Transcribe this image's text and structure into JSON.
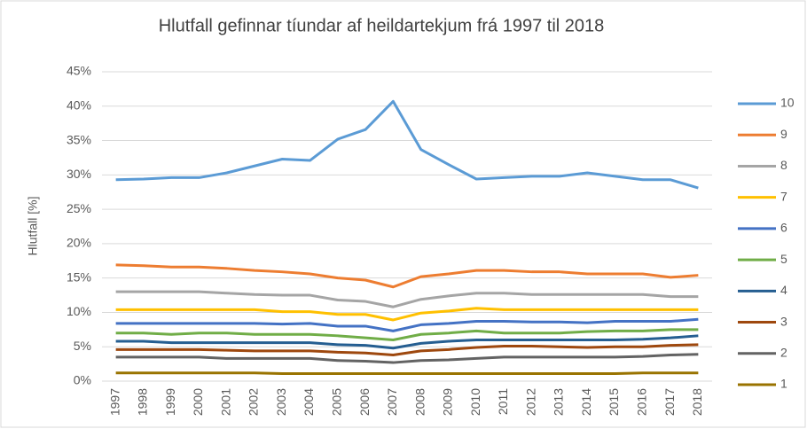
{
  "chart_data": {
    "type": "line",
    "title": "Hlutfall gefinnar tíundar af heildartekjum frá 1997 til 2018",
    "y_label": "Hlutfall [%]",
    "categories": [
      "1997",
      "1998",
      "1999",
      "2000",
      "2001",
      "2002",
      "2003",
      "2004",
      "2005",
      "2006",
      "2007",
      "2008",
      "2009",
      "2010",
      "2011",
      "2012",
      "2013",
      "2014",
      "2015",
      "2016",
      "2017",
      "2018"
    ],
    "ylim": [
      0,
      45
    ],
    "yticks": [
      {
        "value": 0,
        "label": "0%"
      },
      {
        "value": 5,
        "label": "5%"
      },
      {
        "value": 10,
        "label": "10%"
      },
      {
        "value": 15,
        "label": "15%"
      },
      {
        "value": 20,
        "label": "20%"
      },
      {
        "value": 25,
        "label": "25%"
      },
      {
        "value": 30,
        "label": "30%"
      },
      {
        "value": 35,
        "label": "35%"
      },
      {
        "value": 40,
        "label": "40%"
      },
      {
        "value": 45,
        "label": "45%"
      }
    ],
    "grid": true,
    "legend": "right",
    "series": [
      {
        "name": "10",
        "color": "#5b9bd5",
        "values": [
          29.3,
          29.4,
          29.6,
          29.6,
          30.3,
          31.3,
          32.3,
          32.1,
          35.2,
          36.6,
          40.7,
          33.7,
          31.5,
          29.4,
          29.6,
          29.8,
          29.8,
          30.3,
          29.8,
          29.3,
          29.3,
          28.1
        ]
      },
      {
        "name": "9",
        "color": "#ed7d31",
        "values": [
          16.9,
          16.8,
          16.6,
          16.6,
          16.4,
          16.1,
          15.9,
          15.6,
          15.0,
          14.7,
          13.7,
          15.2,
          15.6,
          16.1,
          16.1,
          15.9,
          15.9,
          15.6,
          15.6,
          15.6,
          15.1,
          15.4
        ]
      },
      {
        "name": "8",
        "color": "#a5a5a5",
        "values": [
          13.0,
          13.0,
          13.0,
          13.0,
          12.8,
          12.6,
          12.5,
          12.5,
          11.8,
          11.6,
          10.8,
          11.9,
          12.4,
          12.8,
          12.8,
          12.6,
          12.6,
          12.6,
          12.6,
          12.6,
          12.3,
          12.3
        ]
      },
      {
        "name": "7",
        "color": "#ffc000",
        "values": [
          10.4,
          10.4,
          10.4,
          10.4,
          10.4,
          10.4,
          10.1,
          10.1,
          9.7,
          9.7,
          8.9,
          9.9,
          10.2,
          10.6,
          10.4,
          10.4,
          10.4,
          10.4,
          10.4,
          10.4,
          10.4,
          10.4
        ]
      },
      {
        "name": "6",
        "color": "#4472c4",
        "values": [
          8.4,
          8.4,
          8.4,
          8.4,
          8.4,
          8.4,
          8.3,
          8.4,
          8.0,
          8.0,
          7.3,
          8.2,
          8.4,
          8.7,
          8.7,
          8.6,
          8.6,
          8.5,
          8.7,
          8.7,
          8.7,
          9.0
        ]
      },
      {
        "name": "5",
        "color": "#70ad47",
        "values": [
          7.0,
          7.0,
          6.8,
          7.0,
          7.0,
          6.8,
          6.8,
          6.8,
          6.6,
          6.3,
          6.0,
          6.8,
          7.0,
          7.3,
          7.0,
          7.0,
          7.0,
          7.2,
          7.3,
          7.3,
          7.5,
          7.5
        ]
      },
      {
        "name": "4",
        "color": "#255e91",
        "values": [
          5.8,
          5.8,
          5.6,
          5.6,
          5.6,
          5.6,
          5.6,
          5.6,
          5.3,
          5.2,
          4.8,
          5.5,
          5.8,
          6.0,
          6.0,
          6.0,
          6.0,
          6.0,
          6.0,
          6.1,
          6.3,
          6.6
        ]
      },
      {
        "name": "3",
        "color": "#9e480e",
        "values": [
          4.6,
          4.6,
          4.6,
          4.6,
          4.5,
          4.4,
          4.4,
          4.4,
          4.2,
          4.1,
          3.8,
          4.4,
          4.6,
          4.9,
          5.1,
          5.1,
          5.0,
          4.9,
          5.0,
          5.0,
          5.2,
          5.3
        ]
      },
      {
        "name": "2",
        "color": "#636363",
        "values": [
          3.5,
          3.5,
          3.5,
          3.5,
          3.3,
          3.3,
          3.3,
          3.3,
          3.0,
          2.9,
          2.7,
          3.0,
          3.1,
          3.3,
          3.5,
          3.5,
          3.5,
          3.5,
          3.5,
          3.6,
          3.8,
          3.9
        ]
      },
      {
        "name": "1",
        "color": "#997300",
        "values": [
          1.2,
          1.2,
          1.2,
          1.2,
          1.2,
          1.2,
          1.1,
          1.1,
          1.1,
          1.1,
          1.1,
          1.1,
          1.1,
          1.1,
          1.1,
          1.1,
          1.1,
          1.1,
          1.1,
          1.2,
          1.2,
          1.2
        ]
      }
    ]
  }
}
